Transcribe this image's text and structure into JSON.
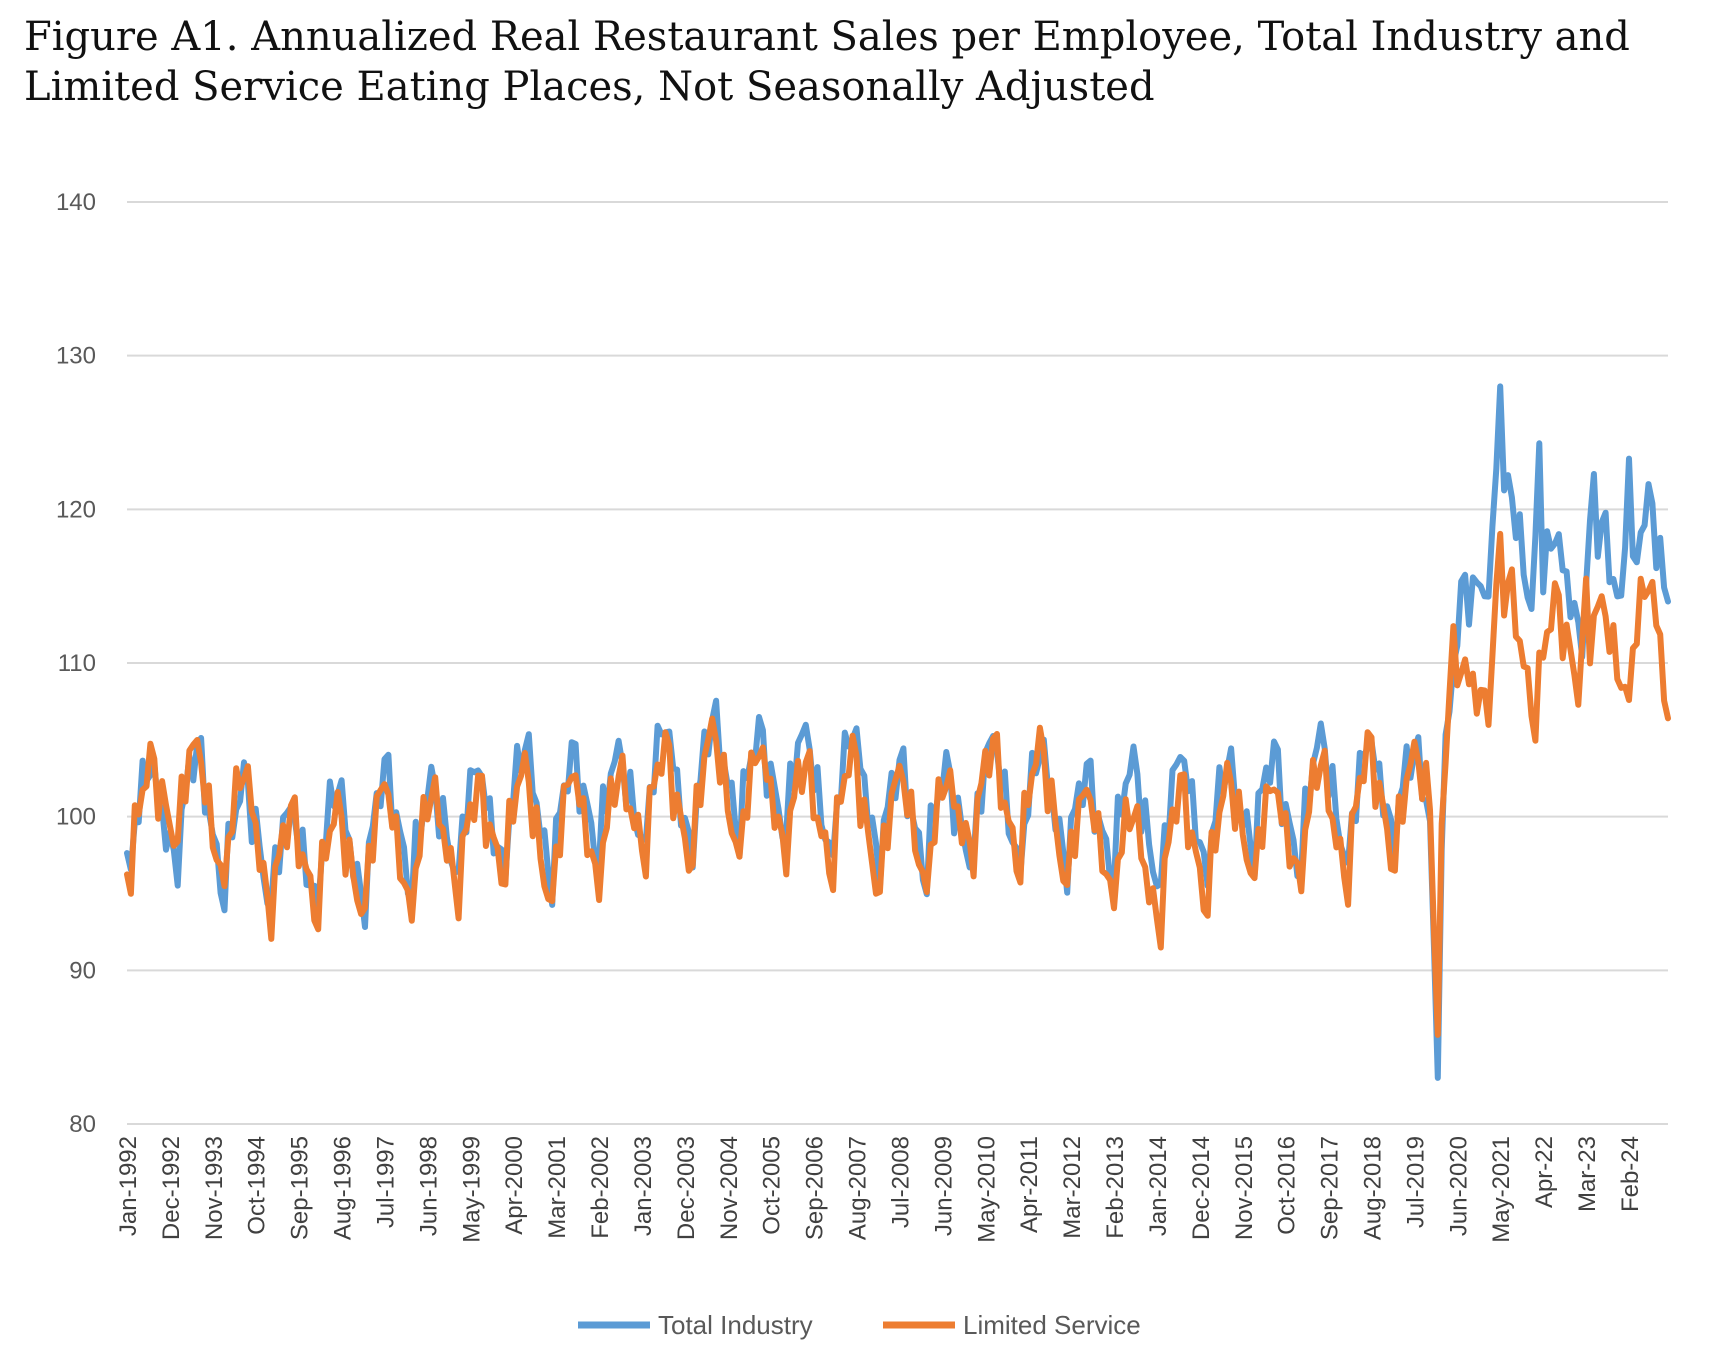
{
  "chart_data": {
    "type": "line",
    "title": "Figure A1. Annualized Real Restaurant Sales per Employee, Total Industry and Limited Service Eating Places, Not Seasonally Adjusted",
    "xlabel": "",
    "ylabel": "",
    "ylim": [
      80,
      140
    ],
    "yticks": [
      80,
      90,
      100,
      110,
      120,
      130,
      140
    ],
    "grid": true,
    "legend_position": "bottom",
    "x_start": "Jan-1992",
    "x_end": "Dec-2024",
    "months_total": 396,
    "xtick_labels": [
      "Jan-1992",
      "Dec-1992",
      "Nov-1993",
      "Oct-1994",
      "Sep-1995",
      "Aug-1996",
      "Jul-1997",
      "Jun-1998",
      "May-1999",
      "Apr-2000",
      "Mar-2001",
      "Feb-2002",
      "Jan-2003",
      "Dec-2003",
      "Nov-2004",
      "Oct-2005",
      "Sep-2006",
      "Aug-2007",
      "Jul-2008",
      "Jun-2009",
      "May-2010",
      "Apr-2011",
      "Mar-2012",
      "Feb-2013",
      "Jan-2014",
      "Dec-2014",
      "Nov-2015",
      "Oct-2016",
      "Sep-2017",
      "Aug-2018",
      "Jul-2019",
      "Jun-2020",
      "May-2021",
      "Apr-22",
      "Mar-23",
      "Feb-24"
    ],
    "series": [
      {
        "name": "Total Industry",
        "color": "#5B9BD5",
        "anchors_year": [
          1992,
          1993,
          1994,
          1995,
          1996,
          1997,
          1998,
          1999,
          2000,
          2001,
          2002,
          2003,
          2004,
          2005,
          2006,
          2007,
          2008,
          2009,
          2010,
          2011,
          2012,
          2013,
          2014,
          2015,
          2016,
          2017,
          2018,
          2019,
          2020,
          2021,
          2022,
          2023,
          2024
        ],
        "anchors_value": [
          99.5,
          100.5,
          99.5,
          97.5,
          97.5,
          98.5,
          99.0,
          99.0,
          100.5,
          100.0,
          100.5,
          101.5,
          102.0,
          102.5,
          102.0,
          101.5,
          101.0,
          99.0,
          100.5,
          101.0,
          100.0,
          99.5,
          99.5,
          100.0,
          100.5,
          100.5,
          101.0,
          101.5,
          101.0,
          119.0,
          116.0,
          114.5,
          116.0
        ],
        "amplitude": 4.5,
        "extremes": [
          {
            "month": 336,
            "value": 83.0
          },
          {
            "month": 352,
            "value": 128.0
          },
          {
            "month": 362,
            "value": 124.3
          },
          {
            "month": 376,
            "value": 122.3
          },
          {
            "month": 385,
            "value": 123.3
          },
          {
            "month": 395,
            "value": 114.0
          }
        ]
      },
      {
        "name": "Limited Service",
        "color": "#ED7D31",
        "anchors_year": [
          1992,
          1993,
          1994,
          1995,
          1996,
          1997,
          1998,
          1999,
          2000,
          2001,
          2002,
          2003,
          2004,
          2005,
          2006,
          2007,
          2008,
          2009,
          2010,
          2011,
          2012,
          2013,
          2014,
          2015,
          2016,
          2017,
          2018,
          2019,
          2020,
          2021,
          2022,
          2023,
          2024
        ],
        "anchors_value": [
          99.5,
          101.5,
          100.0,
          97.5,
          96.5,
          97.5,
          98.0,
          98.0,
          99.5,
          98.5,
          99.0,
          100.5,
          101.0,
          101.5,
          100.5,
          100.0,
          99.5,
          98.5,
          100.5,
          101.0,
          99.5,
          97.5,
          96.5,
          98.5,
          99.0,
          99.0,
          100.0,
          100.5,
          101.5,
          111.0,
          110.5,
          110.5,
          111.0
        ],
        "amplitude": 4.5,
        "extremes": [
          {
            "month": 336,
            "value": 85.8
          },
          {
            "month": 340,
            "value": 112.4
          },
          {
            "month": 352,
            "value": 118.4
          },
          {
            "month": 374,
            "value": 115.5
          },
          {
            "month": 395,
            "value": 106.4
          }
        ]
      }
    ]
  }
}
